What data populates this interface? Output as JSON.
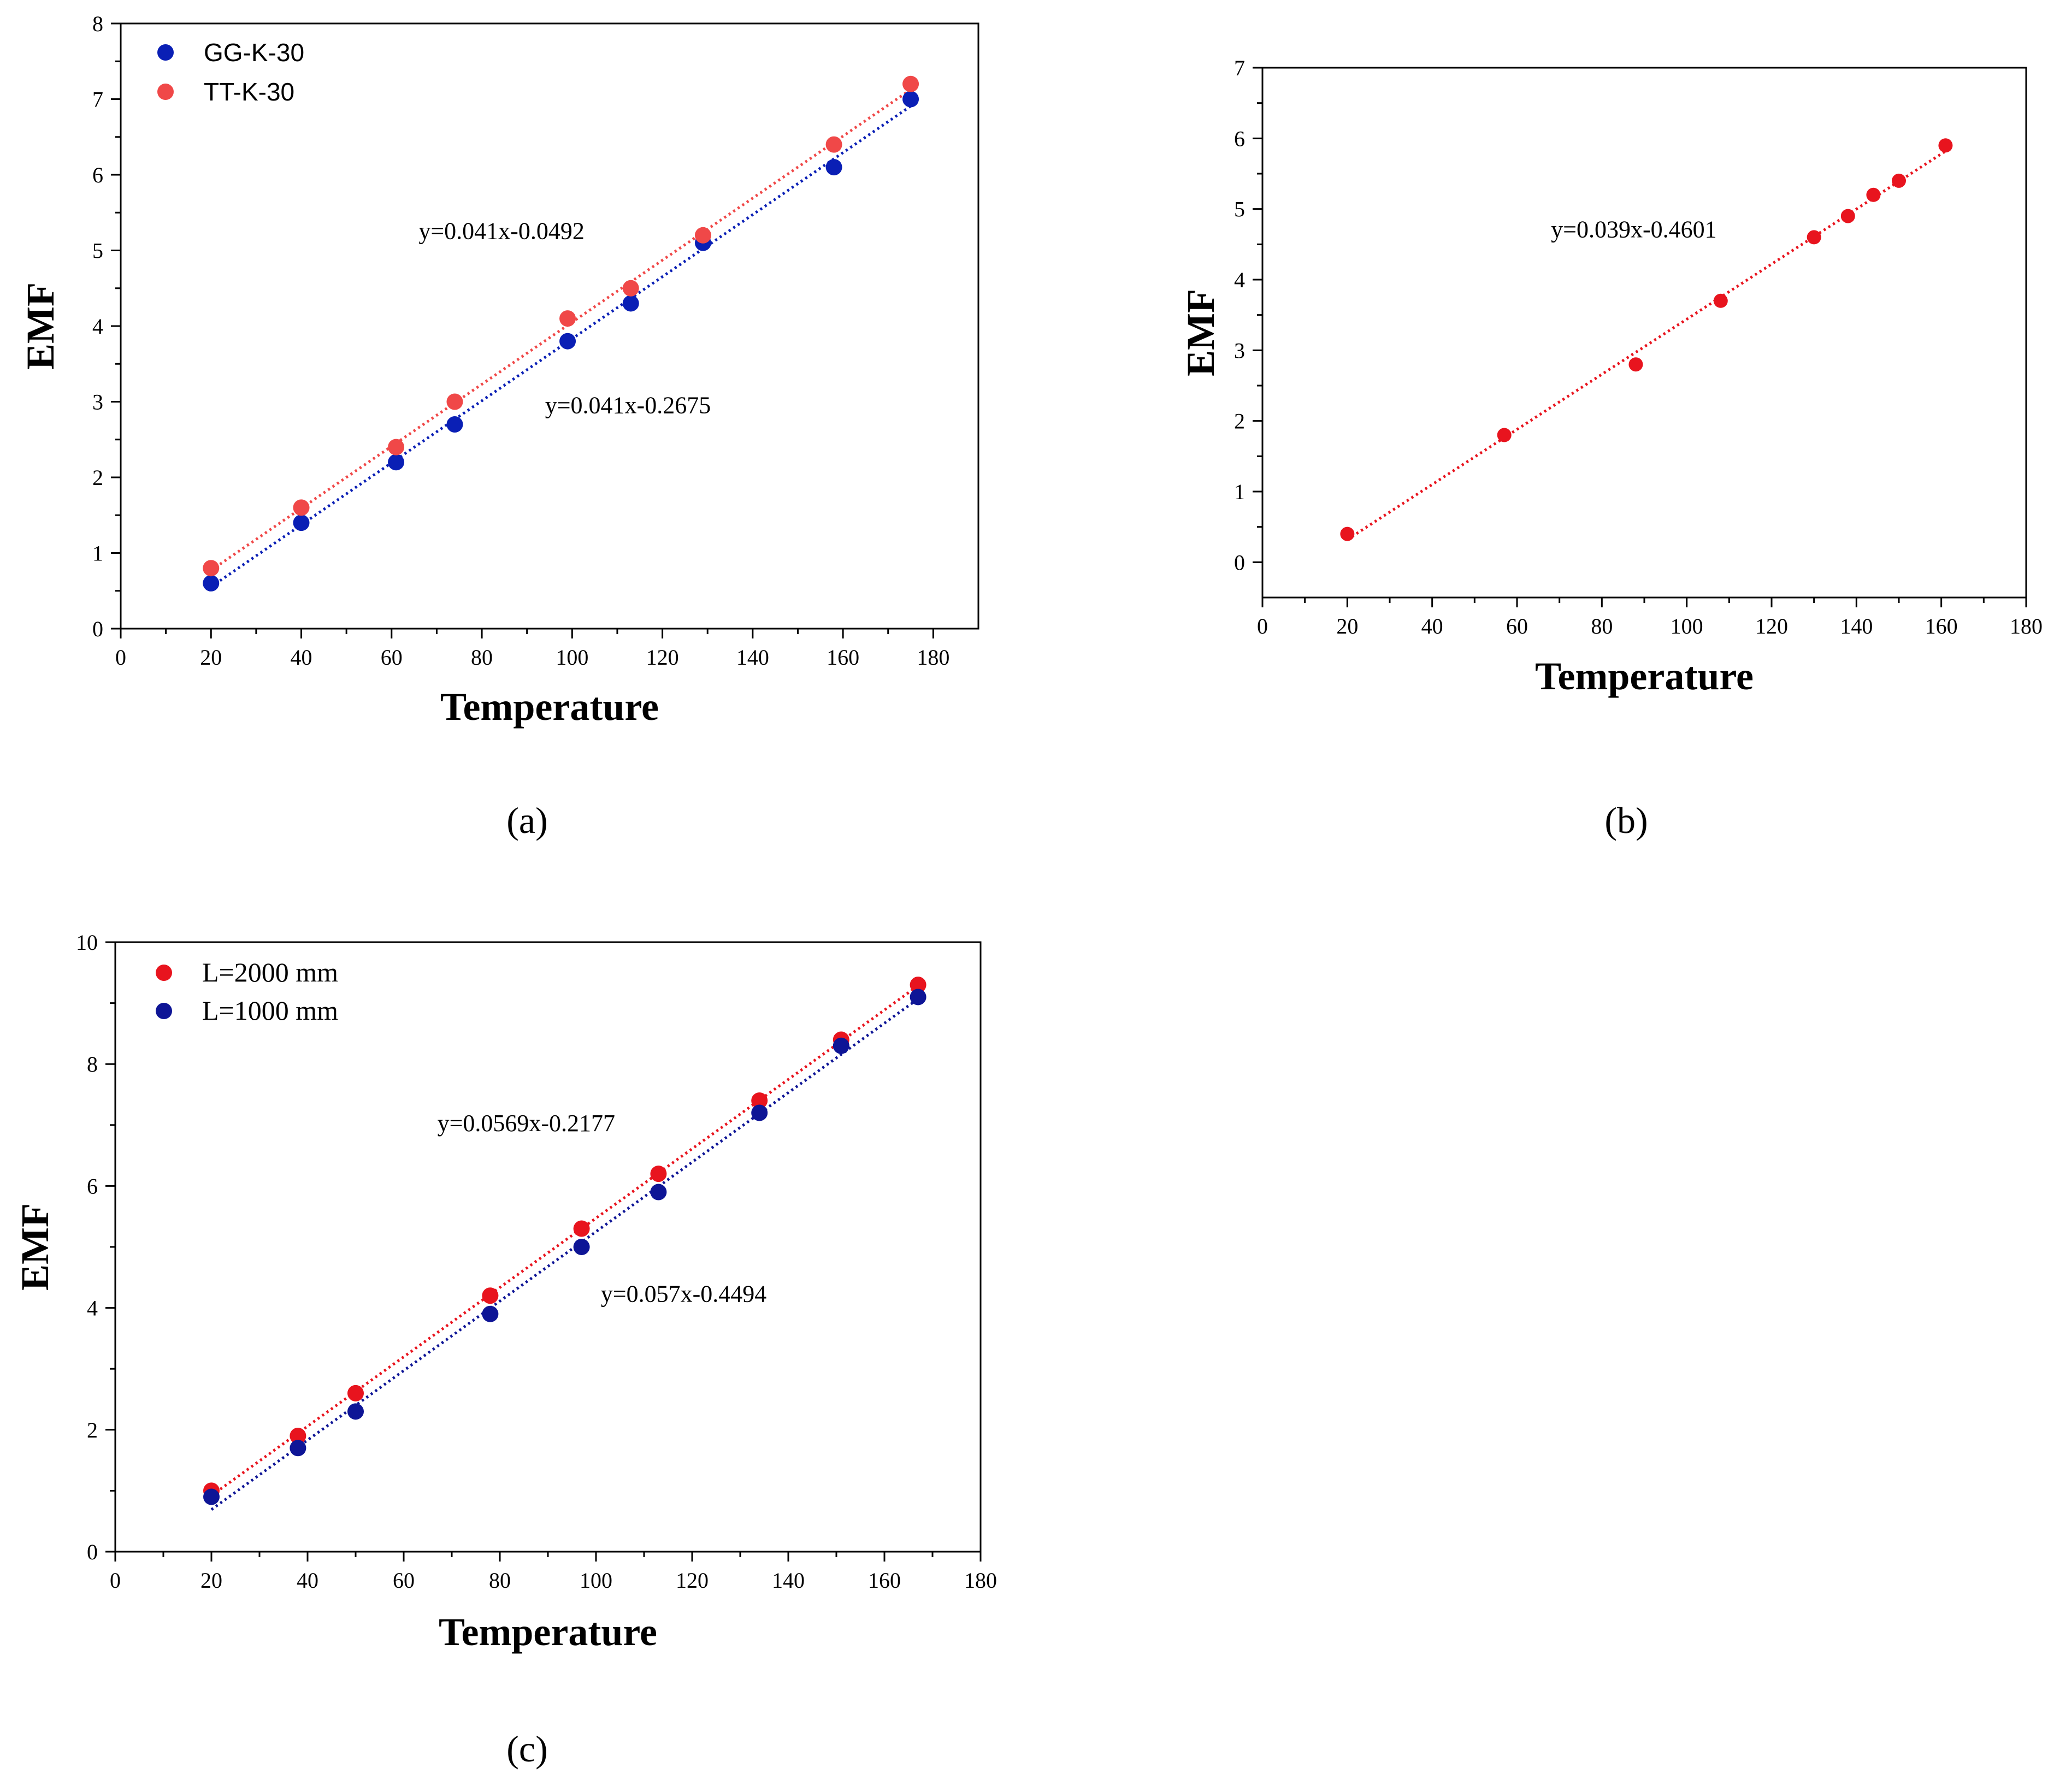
{
  "chart_data": [
    {
      "id": "a",
      "type": "scatter",
      "panel_label": "(a)",
      "xlabel": "Temperature",
      "ylabel": "EMF",
      "xlim": [
        0,
        190
      ],
      "ylim": [
        0,
        8
      ],
      "xticks": [
        0,
        20,
        40,
        60,
        80,
        100,
        120,
        140,
        160,
        180
      ],
      "yticks": [
        0,
        1,
        2,
        3,
        4,
        5,
        6,
        7,
        8
      ],
      "legend_position": "top-left",
      "series": [
        {
          "name": "GG-K-30",
          "color": "#0a1fb5",
          "x": [
            20,
            40,
            61,
            74,
            99,
            113,
            129,
            158,
            175
          ],
          "y": [
            0.6,
            1.4,
            2.2,
            2.7,
            3.8,
            4.3,
            5.1,
            6.1,
            7.0
          ],
          "fit": {
            "slope": 0.041,
            "intercept": -0.2675,
            "x_range": [
              20,
              175
            ]
          }
        },
        {
          "name": "TT-K-30",
          "color": "#f04848",
          "x": [
            20,
            40,
            61,
            74,
            99,
            113,
            129,
            158,
            175
          ],
          "y": [
            0.8,
            1.6,
            2.4,
            3.0,
            4.1,
            4.5,
            5.2,
            6.4,
            7.2
          ],
          "fit": {
            "slope": 0.041,
            "intercept": -0.0492,
            "x_range": [
              20,
              175
            ]
          }
        }
      ],
      "annotations": [
        {
          "text": "y=0.041x-0.0492",
          "at": [
            66,
            5.15
          ]
        },
        {
          "text": "y=0.041x-0.2675",
          "at": [
            94,
            2.85
          ]
        }
      ]
    },
    {
      "id": "b",
      "type": "scatter",
      "panel_label": "(b)",
      "xlabel": "Temperature",
      "ylabel": "EMF",
      "xlim": [
        0,
        180
      ],
      "ylim": [
        -0.5,
        7
      ],
      "xticks": [
        0,
        20,
        40,
        60,
        80,
        100,
        120,
        140,
        160,
        180
      ],
      "yticks": [
        0,
        1,
        2,
        3,
        4,
        5,
        6,
        7
      ],
      "series": [
        {
          "name": "",
          "color": "#e8141e",
          "x": [
            20,
            57,
            88,
            108,
            130,
            138,
            144,
            150,
            161
          ],
          "y": [
            0.4,
            1.8,
            2.8,
            3.7,
            4.6,
            4.9,
            5.2,
            5.4,
            5.9
          ],
          "fit": {
            "slope": 0.039,
            "intercept": -0.4601,
            "x_range": [
              20,
              161
            ]
          }
        }
      ],
      "annotations": [
        {
          "text": "y=0.039x-0.4601",
          "at": [
            68,
            4.6
          ]
        }
      ]
    },
    {
      "id": "c",
      "type": "scatter",
      "panel_label": "(c)",
      "xlabel": "Temperature",
      "ylabel": "EMF",
      "xlim": [
        0,
        180
      ],
      "ylim": [
        0,
        10
      ],
      "xticks": [
        0,
        20,
        40,
        60,
        80,
        100,
        120,
        140,
        160,
        180
      ],
      "yticks": [
        0,
        2,
        4,
        6,
        8,
        10
      ],
      "legend_position": "top-left",
      "series": [
        {
          "name": "L=2000 mm",
          "color": "#e8141e",
          "x": [
            20,
            38,
            50,
            78,
            97,
            113,
            134,
            151,
            167
          ],
          "y": [
            1.0,
            1.9,
            2.6,
            4.2,
            5.3,
            6.2,
            7.4,
            8.4,
            9.3
          ],
          "fit": {
            "slope": 0.0569,
            "intercept": -0.2177,
            "x_range": [
              20,
              167
            ]
          }
        },
        {
          "name": "L=1000 mm",
          "color": "#0e1596",
          "x": [
            20,
            38,
            50,
            78,
            97,
            113,
            134,
            151,
            167
          ],
          "y": [
            0.9,
            1.7,
            2.3,
            3.9,
            5.0,
            5.9,
            7.2,
            8.3,
            9.1
          ],
          "fit": {
            "slope": 0.057,
            "intercept": -0.4494,
            "x_range": [
              20,
              167
            ]
          }
        }
      ],
      "annotations": [
        {
          "text": "y=0.0569x-0.2177",
          "at": [
            67,
            6.9
          ]
        },
        {
          "text": "y=0.057x-0.4494",
          "at": [
            101,
            4.1
          ]
        }
      ]
    }
  ]
}
